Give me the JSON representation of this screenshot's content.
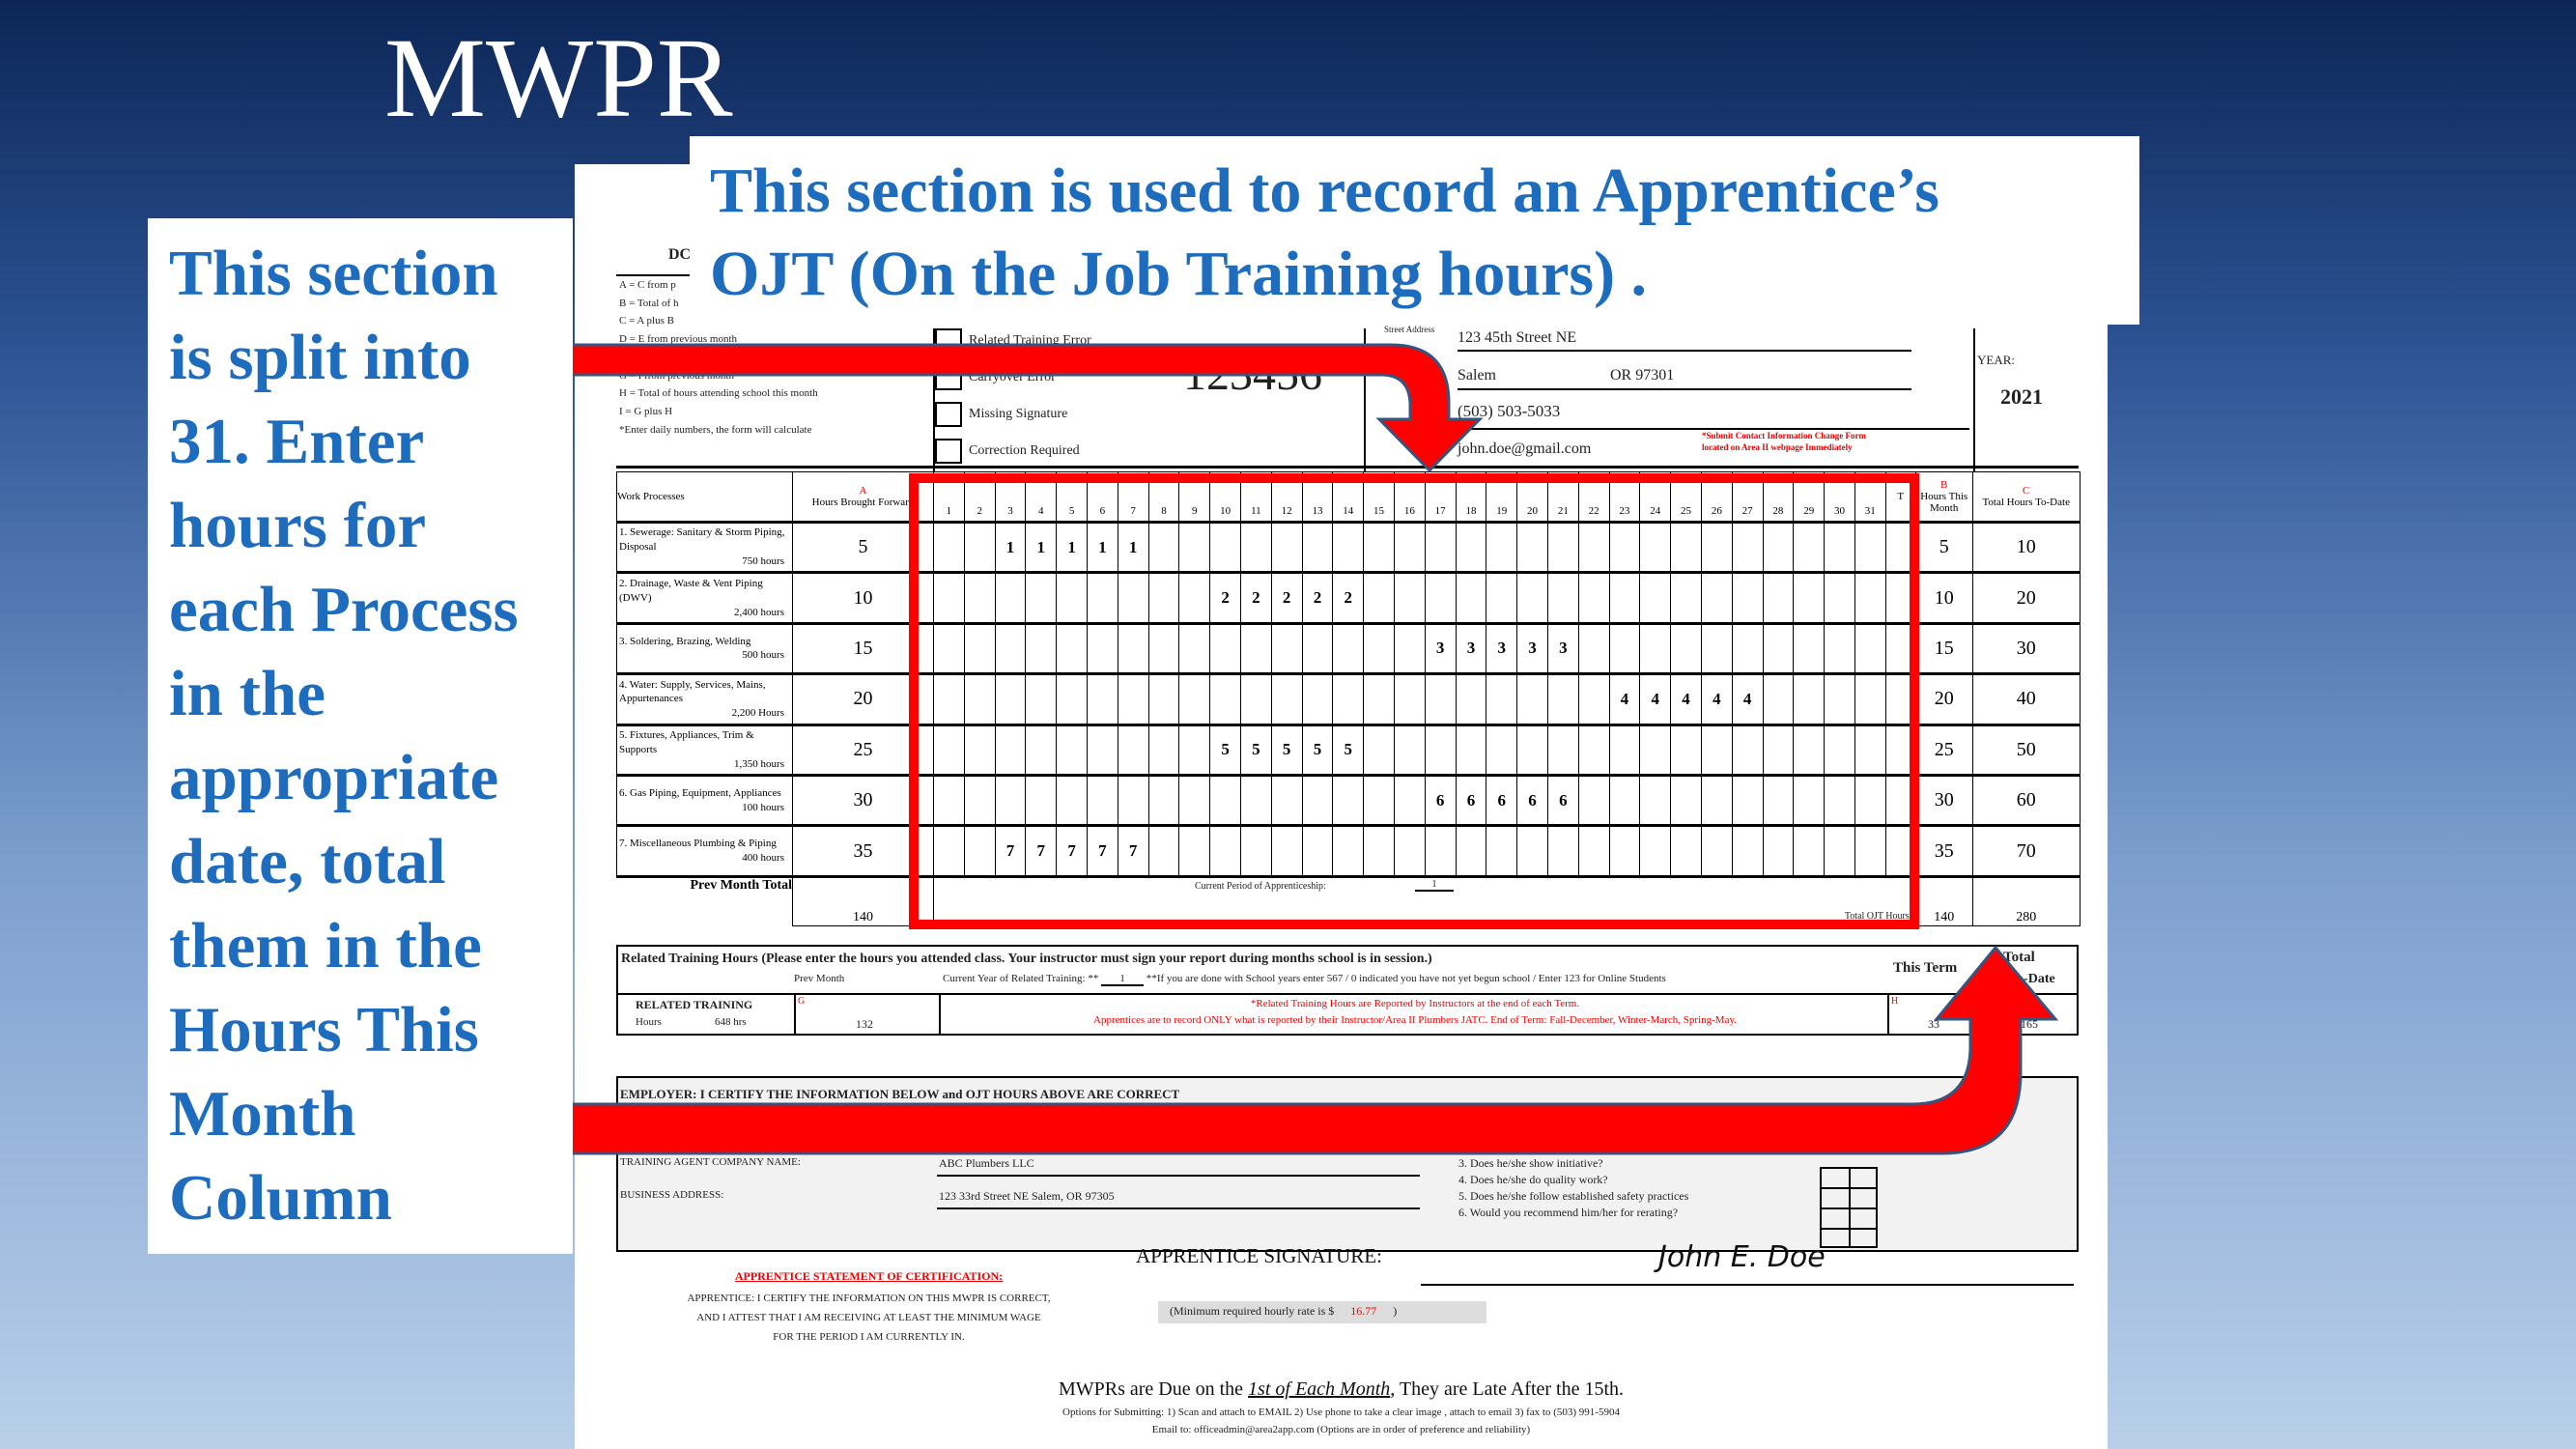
{
  "slide_title": "MWPR",
  "left_callout": [
    "This section",
    "is split into",
    "31. Enter",
    "hours for",
    "each Process",
    "in the",
    "appropriate",
    "date, total",
    "them in the",
    "Hours This",
    "Month",
    "Column"
  ],
  "top_callout": [
    "This section is used to record an Apprentice’s",
    "OJT (On the Job Training hours) ."
  ],
  "colors": {
    "callout_text": "#1d6cbd",
    "arrow": "#ff0000",
    "highlight_box": "#ff0000"
  },
  "form": {
    "header_fragment": "DC",
    "legend": [
      "A = C from p",
      "B = Total of h",
      "C = A plus B",
      "D = E from previous month",
      "F = Total of column C",
      "G = I from previous month",
      "H = Total of hours attending school this month",
      "I = G plus H",
      "*Enter daily numbers, the form will calculate"
    ],
    "checkboxes": [
      "Related Training Error",
      "Carryover Error",
      "Missing Signature",
      "Correction Required"
    ],
    "apprentice_number": "123456",
    "street_label": "Street Address",
    "street": "123 45th Street NE",
    "city": "Salem",
    "state_zip": "OR  97301",
    "phone": "(503) 503-5033",
    "email": "john.doe@gmail.com",
    "contact_note": "*Submit Contact Information Change Form located on Area II webpage Immediately",
    "year_label": "YEAR:",
    "year": "2021",
    "table": {
      "col_work": "Work Processes",
      "col_a_letter": "A",
      "col_a": "Hours Brought Forward",
      "col_t": "T",
      "col_b_letter": "B",
      "col_b": "Hours This Month",
      "col_c_letter": "C",
      "col_c": "Total Hours To-Date",
      "days": [
        "1",
        "2",
        "3",
        "4",
        "5",
        "6",
        "7",
        "8",
        "9",
        "10",
        "11",
        "12",
        "13",
        "14",
        "15",
        "16",
        "17",
        "18",
        "19",
        "20",
        "21",
        "22",
        "23",
        "24",
        "25",
        "26",
        "27",
        "28",
        "29",
        "30",
        "31"
      ],
      "rows": [
        {
          "name": "1. Sewerage: Sanitary & Storm Piping, Disposal",
          "required": "750 hours",
          "brought_forward": "5",
          "entries": {
            "3": "1",
            "4": "1",
            "5": "1",
            "6": "1",
            "7": "1"
          },
          "month": "5",
          "to_date": "10"
        },
        {
          "name": "2. Drainage, Waste & Vent Piping (DWV)",
          "required": "2,400 hours",
          "brought_forward": "10",
          "entries": {
            "10": "2",
            "11": "2",
            "12": "2",
            "13": "2",
            "14": "2"
          },
          "month": "10",
          "to_date": "20"
        },
        {
          "name": "3. Soldering, Brazing, Welding",
          "required": "500 hours",
          "brought_forward": "15",
          "entries": {
            "17": "3",
            "18": "3",
            "19": "3",
            "20": "3",
            "21": "3"
          },
          "month": "15",
          "to_date": "30"
        },
        {
          "name": "4. Water: Supply, Services, Mains, Appurtenances",
          "required": "2,200 Hours",
          "brought_forward": "20",
          "entries": {
            "23": "4",
            "24": "4",
            "25": "4",
            "26": "4",
            "27": "4"
          },
          "month": "20",
          "to_date": "40"
        },
        {
          "name": "5. Fixtures, Appliances, Trim & Supports",
          "required": "1,350 hours",
          "brought_forward": "25",
          "entries": {
            "10": "5",
            "11": "5",
            "12": "5",
            "13": "5",
            "14": "5"
          },
          "month": "25",
          "to_date": "50"
        },
        {
          "name": "6. Gas Piping, Equipment, Appliances",
          "required": "100 hours",
          "brought_forward": "30",
          "entries": {
            "17": "6",
            "18": "6",
            "19": "6",
            "20": "6",
            "21": "6"
          },
          "month": "30",
          "to_date": "60"
        },
        {
          "name": "7. Miscellaneous Plumbing & Piping",
          "required": "400 hours",
          "brought_forward": "35",
          "entries": {
            "3": "7",
            "4": "7",
            "5": "7",
            "6": "7",
            "7": "7"
          },
          "month": "35",
          "to_date": "70"
        }
      ],
      "prev_month_label": "Prev Month Total",
      "d_letter": "D",
      "prev_month_total": "140",
      "period_label": "Current Period of Apprenticeship:",
      "period": "1",
      "total_ojt_label": "Total OJT Hours",
      "e_letter": "E",
      "e_value": "140",
      "f_letter": "F",
      "f_value": "280"
    },
    "related": {
      "heading": "Related Training Hours (Please enter the hours you attended class.  Your instructor must sign your report during months school is in session.)",
      "prev_month": "Prev Month",
      "current_year_label": "Current Year of Related Training: **",
      "current_year": "1",
      "current_year_note": "**If you are done with School years enter 567 / 0 indicated you have not yet begun school / Enter 123 for Online Students",
      "this_term": "This Term",
      "total": "Total",
      "to_date": "To-Date",
      "label": "RELATED TRAINING",
      "hours_label": "Hours",
      "hours_req": "648 hrs",
      "g_letter": "G",
      "prev_value": "132",
      "note1": "*Related Training Hours are Reported by Instructors at the end of each Term.",
      "note2": "Apprentices are to record ONLY what is reported by their Instructor/Area II Plumbers JATC.    End of Term: Fall-December, Winter-March, Spring-May.",
      "h_letter": "H",
      "term_value": "33",
      "total_value": "165"
    },
    "employer": {
      "heading": "EMPLOYER: I CERTIFY THE INFORMATION BELOW and OJT HOURS ABOVE ARE CORRECT",
      "company_label": "TRAINING AGENT COMPANY NAME:",
      "company": "ABC Plumbers LLC",
      "address_label": "BUSINESS ADDRESS:",
      "address": "123 33rd Street NE   Salem, OR 97305",
      "questions": [
        "3. Does he/she show initiative?",
        "4. Does he/she do quality work?",
        "5. Does he/she follow established safety practices",
        "6. Would you recommend him/her for rerating?"
      ]
    },
    "apprentice": {
      "signature_label": "APPRENTICE SIGNATURE:",
      "signature": "John E. Doe",
      "statement_title": "APPRENTICE STATEMENT OF CERTIFICATION:",
      "statement": [
        "APPRENTICE:  I CERTIFY THE INFORMATION ON THIS MWPR IS CORRECT,",
        "AND I ATTEST THAT I AM RECEIVING AT LEAST THE MINIMUM WAGE",
        "FOR THE PERIOD I AM CURRENTLY IN."
      ],
      "min_rate_label": "(Minimum required hourly rate is $",
      "min_rate": "16.77",
      "min_rate_close": ")"
    },
    "footer": {
      "due_pre": "MWPRs are Due on the ",
      "due_em": "1st of Each Month",
      "due_post": ", They are Late After the 15th.",
      "options": "Options for Submitting:   1) Scan and attach to EMAIL     2) Use phone to take a clear image , attach to email    3) fax to (503) 991-5904",
      "email": "Email to:  officeadmin@area2app.com        (Options are in order of preference and reliability)"
    }
  }
}
